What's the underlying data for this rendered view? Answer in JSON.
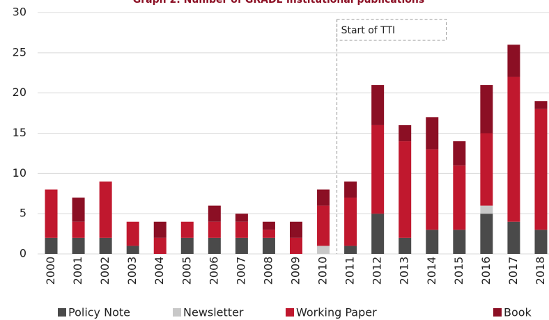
{
  "chart_data": {
    "type": "stacked_bar",
    "title": "Graph 2: Number of GRADE institutional publications",
    "annotation": "Start of TTI",
    "categories": [
      "2000",
      "2001",
      "2002",
      "2003",
      "2004",
      "2005",
      "2006",
      "2007",
      "2008",
      "2009",
      "2010",
      "2011",
      "2012",
      "2013",
      "2014",
      "2015",
      "2016",
      "2017",
      "2018"
    ],
    "series": [
      {
        "name": "Policy Note",
        "color": "#4a4a4a",
        "values": [
          2,
          2,
          2,
          1,
          0,
          2,
          2,
          2,
          2,
          0,
          0,
          1,
          5,
          2,
          3,
          3,
          5,
          4,
          3
        ]
      },
      {
        "name": "Newsletter",
        "color": "#c8c8c8",
        "values": [
          0,
          0,
          0,
          0,
          0,
          0,
          0,
          0,
          0,
          0,
          1,
          0,
          0,
          0,
          0,
          0,
          1,
          0,
          0
        ]
      },
      {
        "name": "Working Paper",
        "color": "#c0182e",
        "values": [
          6,
          2,
          7,
          3,
          2,
          2,
          2,
          2,
          1,
          2,
          5,
          6,
          11,
          12,
          10,
          8,
          9,
          18,
          15
        ]
      },
      {
        "name": "Book",
        "color": "#8b0f24",
        "values": [
          0,
          3,
          0,
          0,
          2,
          0,
          2,
          1,
          1,
          2,
          2,
          2,
          5,
          2,
          4,
          3,
          6,
          4,
          1
        ]
      }
    ],
    "ylim": [
      0,
      30
    ],
    "yticks": [
      0,
      5,
      10,
      15,
      20,
      25,
      30
    ],
    "grid": true
  }
}
